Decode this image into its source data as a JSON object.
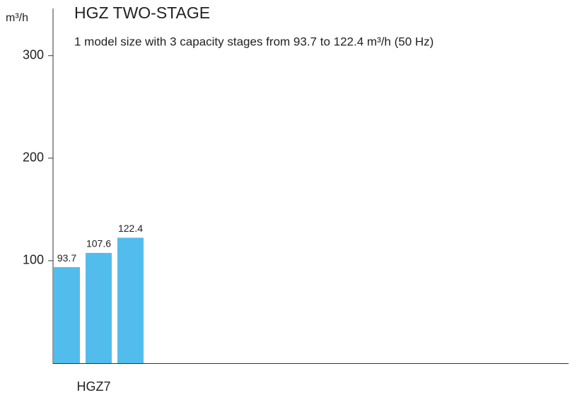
{
  "chart_data": {
    "type": "bar",
    "title": "HGZ TWO-STAGE",
    "subtitle": "1 model size with 3 capacity stages from 93.7 to 122.4 m³/h (50 Hz)",
    "y_label": "m³/h",
    "categories": [
      null,
      "HGZ7",
      null
    ],
    "values": [
      93.7,
      107.6,
      122.4
    ],
    "color": "#52bdec",
    "ylim": [
      0,
      346
    ],
    "yticks": [
      100,
      200,
      300
    ]
  }
}
